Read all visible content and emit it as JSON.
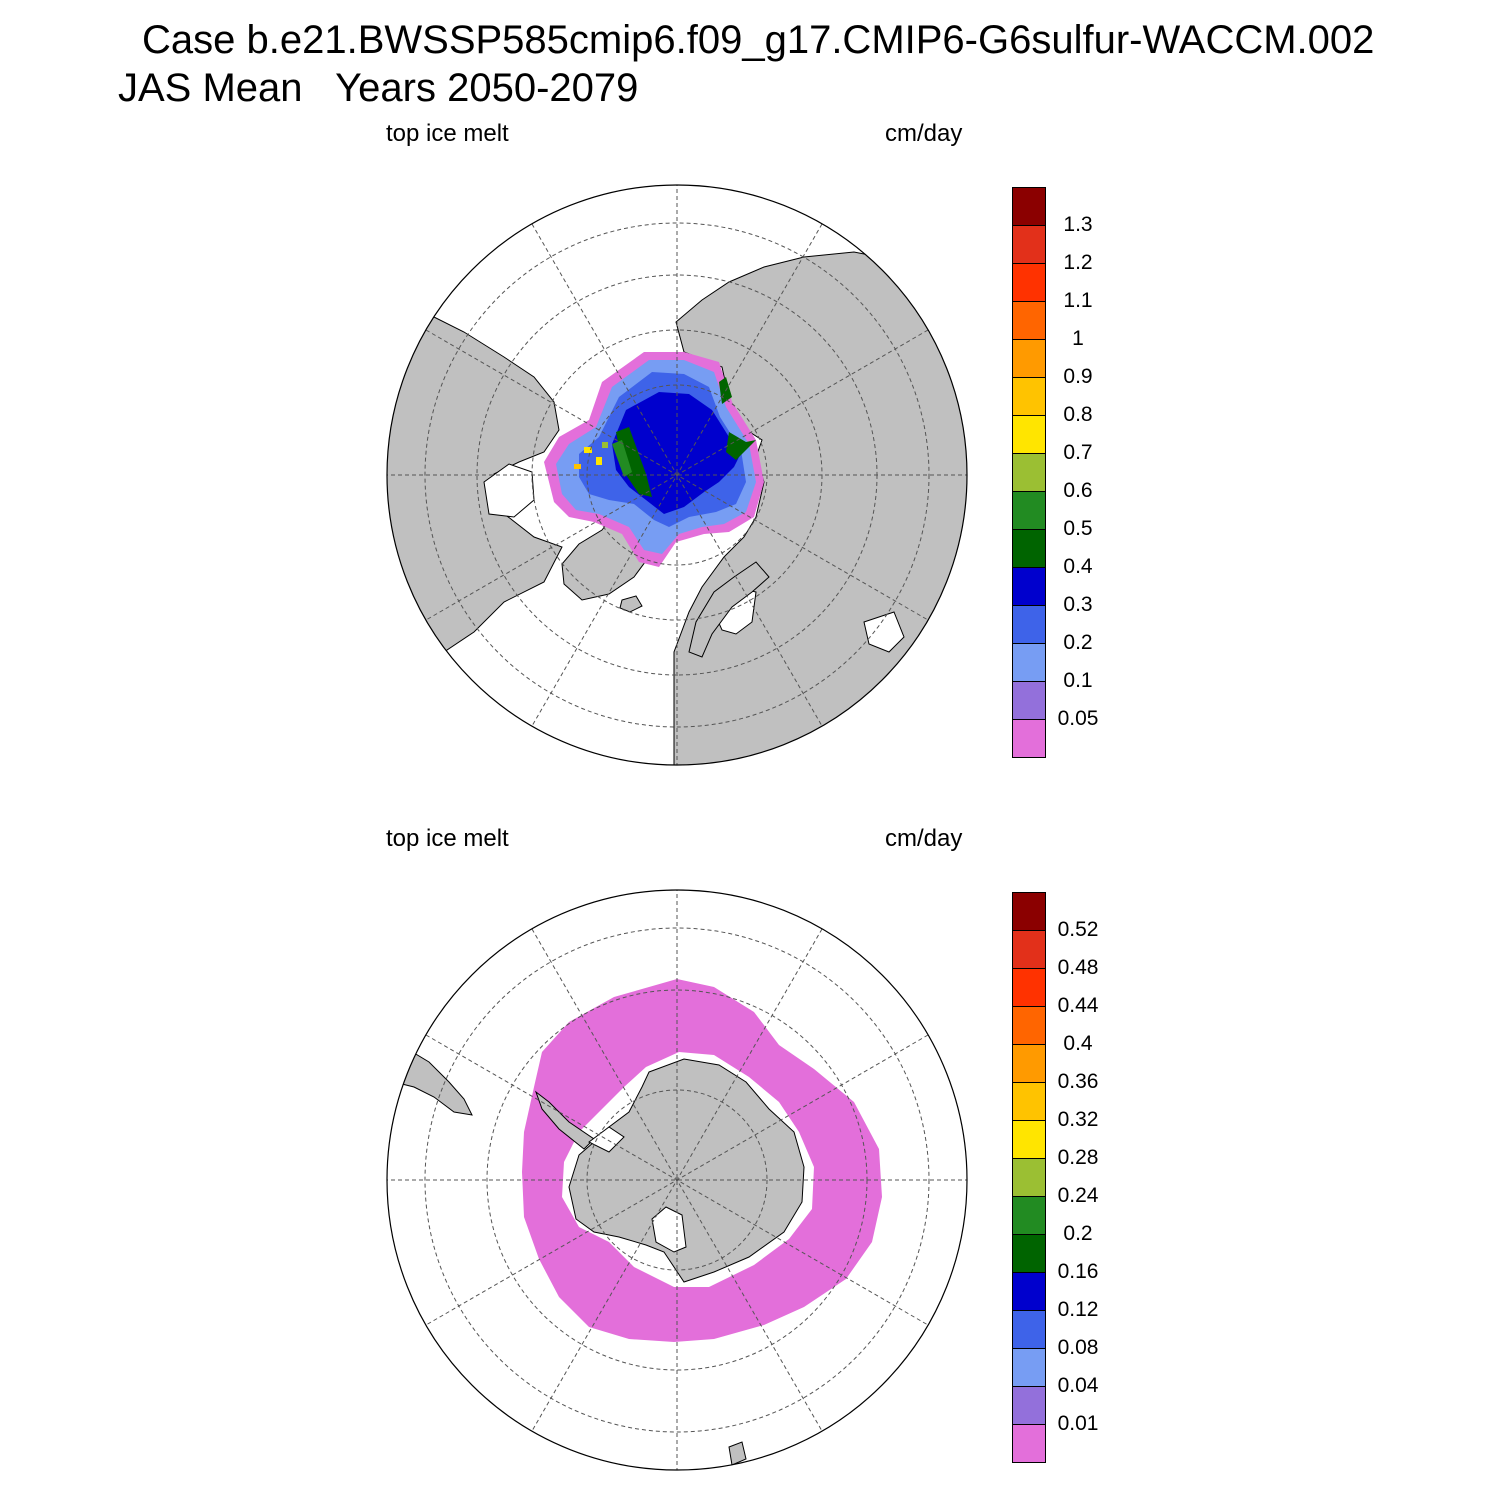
{
  "header": {
    "title": "Case b.e21.BWSSP585cmip6.f09_g17.CMIP6-G6sulfur-WACCM.002",
    "subtitle": "JAS Mean   Years 2050-2079"
  },
  "colors": {
    "land": "#c0c0c0",
    "ocean": "#ffffff",
    "palette": [
      "#e36fda",
      "#9370db",
      "#779df3",
      "#3e63e9",
      "#0000cd",
      "#006400",
      "#228b22",
      "#9bbf33",
      "#ffe500",
      "#ffc300",
      "#ff9a00",
      "#ff6500",
      "#ff3200",
      "#e2301a",
      "#8b0000"
    ]
  },
  "panels": [
    {
      "id": "north",
      "left_label": "top ice melt",
      "right_label": "cm/day",
      "projection": "north-polar-stereographic",
      "colorbar": {
        "levels": [
          "0.05",
          "0.1",
          "0.2",
          "0.3",
          "0.4",
          "0.5",
          "0.6",
          "0.7",
          "0.8",
          "0.9",
          "1",
          "1.1",
          "1.2",
          "1.3"
        ]
      }
    },
    {
      "id": "south",
      "left_label": "top ice melt",
      "right_label": "cm/day",
      "projection": "south-polar-stereographic",
      "colorbar": {
        "levels": [
          "0.01",
          "0.04",
          "0.08",
          "0.12",
          "0.16",
          "0.2",
          "0.24",
          "0.28",
          "0.32",
          "0.36",
          "0.4",
          "0.44",
          "0.48",
          "0.52"
        ]
      }
    }
  ]
}
